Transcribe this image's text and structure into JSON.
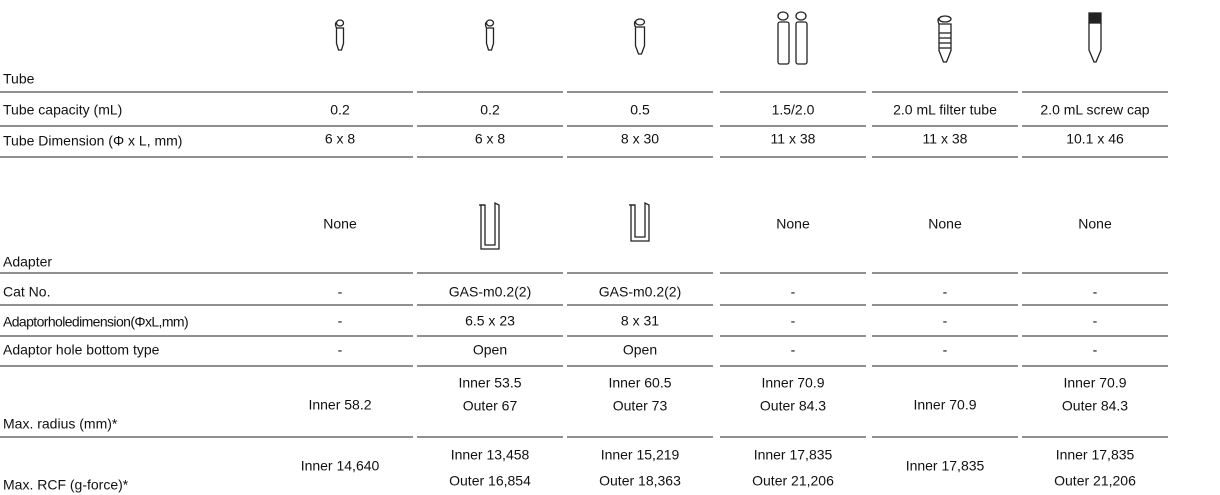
{
  "table": {
    "rows": [
      {
        "label": "Tube",
        "cells": null
      },
      {
        "label": "Tube capacity (mL)",
        "cells": [
          [
            "0.2"
          ],
          [
            "0.2"
          ],
          [
            "0.5"
          ],
          [
            "1.5/2.0"
          ],
          [
            "2.0 mL filter tube"
          ],
          [
            "2.0 mL screw cap"
          ]
        ]
      },
      {
        "label": "Tube Dimension (Φ x L, mm)",
        "cells": [
          [
            "6 x 8"
          ],
          [
            "6 x 8"
          ],
          [
            "8 x 30"
          ],
          [
            "11 x 38"
          ],
          [
            "11 x 38"
          ],
          [
            "10.1 x 46"
          ]
        ]
      },
      {
        "label": "Adapter",
        "cells": [
          [
            "None"
          ],
          null,
          null,
          [
            "None"
          ],
          [
            "None"
          ],
          [
            "None"
          ]
        ]
      },
      {
        "label": "Cat No.",
        "cells": [
          [
            "-"
          ],
          [
            "GAS-m0.2(2)"
          ],
          [
            "GAS-m0.2(2)"
          ],
          [
            "-"
          ],
          [
            "-"
          ],
          [
            "-"
          ]
        ]
      },
      {
        "label": "Adaptorholedimension(ΦxL,mm)",
        "cells": [
          [
            "-"
          ],
          [
            "6.5 x 23"
          ],
          [
            "8 x 31"
          ],
          [
            "-"
          ],
          [
            "-"
          ],
          [
            "-"
          ]
        ]
      },
      {
        "label": "Adaptor hole bottom type",
        "cells": [
          [
            "-"
          ],
          [
            "Open"
          ],
          [
            "Open"
          ],
          [
            "-"
          ],
          [
            "-"
          ],
          [
            "-"
          ]
        ]
      },
      {
        "label": "Max. radius (mm)*",
        "cells": [
          [
            "Inner 58.2"
          ],
          [
            "Inner 53.5",
            "Outer 67"
          ],
          [
            "Inner 60.5",
            "Outer 73"
          ],
          [
            "Inner 70.9",
            "Outer 84.3"
          ],
          [
            "Inner 70.9"
          ],
          [
            "Inner 70.9",
            "Outer 84.3"
          ]
        ]
      },
      {
        "label": "Max. RCF (g-force)*",
        "cells": [
          [
            "Inner 14,640"
          ],
          [
            "Inner 13,458",
            "Outer 16,854"
          ],
          [
            "Inner 15,219",
            "Outer 18,363"
          ],
          [
            "Inner 17,835",
            "Outer 21,206"
          ],
          [
            "Inner 17,835"
          ],
          [
            "Inner 17,835",
            "Outer 21,206"
          ]
        ]
      }
    ]
  }
}
